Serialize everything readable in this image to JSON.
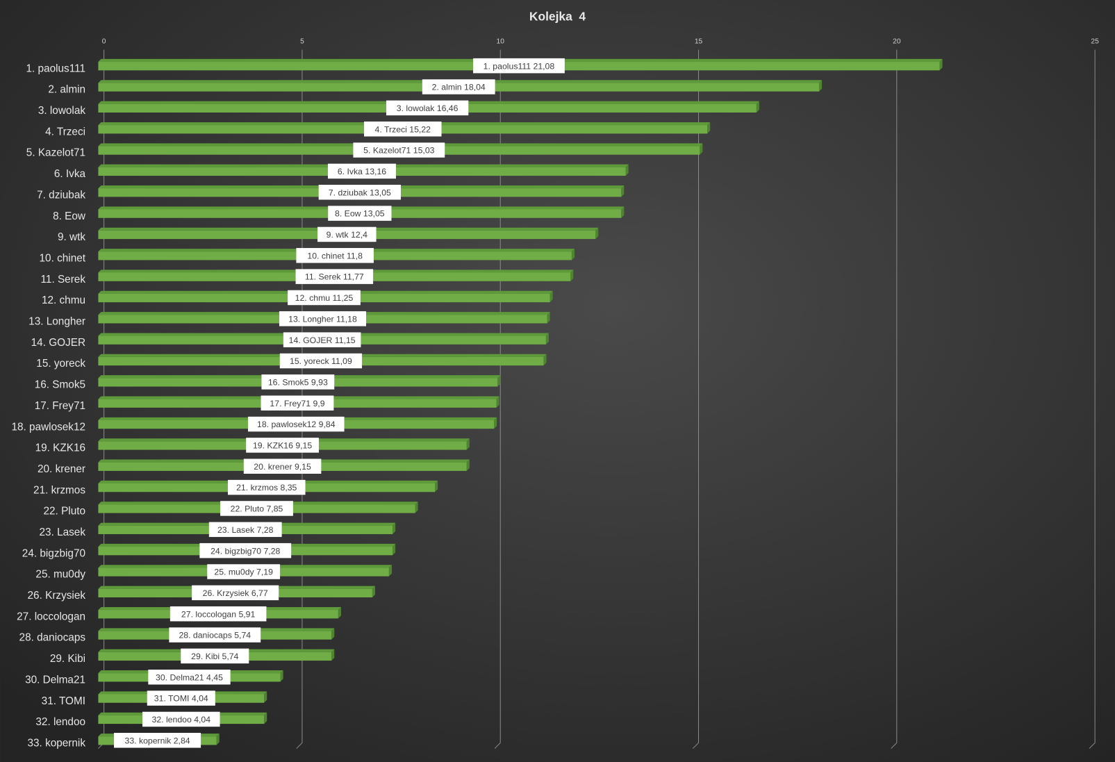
{
  "chart_data": {
    "type": "bar",
    "orientation": "horizontal",
    "title": "Kolejka  4",
    "xlabel": "",
    "ylabel": "",
    "xlim": [
      0,
      25
    ],
    "x_ticks": [
      "0",
      "5",
      "10",
      "15",
      "20",
      "25"
    ],
    "grid": true,
    "legend": "none",
    "bar_color": "#70ad47",
    "background_color": "#3a3a3a",
    "categories": [
      "1. paolus111",
      "2. almin",
      "3. lowolak",
      "4. Trzeci",
      "5. Kazelot71",
      "6. Ivka",
      "7. dziubak",
      "8. Eow",
      "9. wtk",
      "10. chinet",
      "11. Serek",
      "12. chmu",
      "13. Longher",
      "14. GOJER",
      "15. yoreck",
      "16. Smok5",
      "17. Frey71",
      "18. pawlosek12",
      "19. KZK16",
      "20. krener",
      "21. krzmos",
      "22. Pluto",
      "23. Lasek",
      "24. bigzbig70",
      "25. mu0dy",
      "26. Krzysiek",
      "27. loccologan",
      "28. daniocaps",
      "29. Kibi",
      "30. Delma21",
      "31. TOMI",
      "32. lendoo",
      "33. kopernik"
    ],
    "values": [
      21.08,
      18.04,
      16.46,
      15.22,
      15.03,
      13.16,
      13.05,
      13.05,
      12.4,
      11.8,
      11.77,
      11.25,
      11.18,
      11.15,
      11.09,
      9.93,
      9.9,
      9.84,
      9.15,
      9.15,
      8.35,
      7.85,
      7.28,
      7.28,
      7.19,
      6.77,
      5.91,
      5.74,
      5.74,
      4.45,
      4.04,
      4.04,
      2.84
    ],
    "data_labels": [
      "1. paolus111 21,08",
      "2. almin 18,04",
      "3. lowolak 16,46",
      "4. Trzeci 15,22",
      "5. Kazelot71 15,03",
      "6. Ivka 13,16",
      "7. dziubak 13,05",
      "8. Eow 13,05",
      "9. wtk 12,4",
      "10. chinet 11,8",
      "11. Serek 11,77",
      "12. chmu 11,25",
      "13. Longher 11,18",
      "14. GOJER 11,15",
      "15. yoreck 11,09",
      "16. Smok5 9,93",
      "17. Frey71 9,9",
      "18. pawlosek12 9,84",
      "19. KZK16 9,15",
      "20. krener 9,15",
      "21. krzmos 8,35",
      "22. Pluto 7,85",
      "23. Lasek 7,28",
      "24. bigzbig70 7,28",
      "25. mu0dy 7,19",
      "26. Krzysiek 6,77",
      "27. loccologan 5,91",
      "28. daniocaps 5,74",
      "29. Kibi 5,74",
      "30. Delma21 4,45",
      "31. TOMI 4,04",
      "32. lendoo 4,04",
      "33. kopernik 2,84"
    ]
  }
}
